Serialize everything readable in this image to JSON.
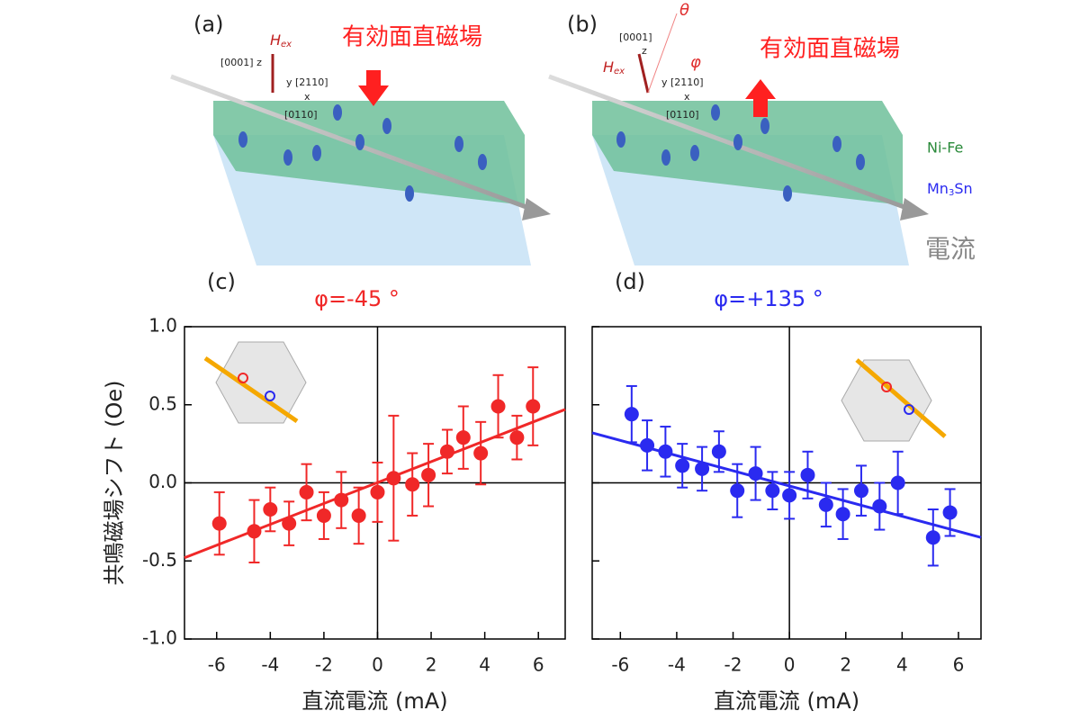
{
  "schematic": {
    "a": {
      "label": "(a)",
      "field": "有効面直磁場",
      "hex": [
        "H",
        "ex"
      ],
      "z": "[0001] z",
      "y": "y [2110]",
      "x": "x",
      "xdir": "[0110]"
    },
    "b": {
      "label": "(b)",
      "field": "有効面直磁場",
      "hex": [
        "H",
        "ex"
      ],
      "theta": "θ",
      "phi": "φ",
      "z0": "[0001]",
      "z": "z",
      "y": "y [2110]",
      "x": "x",
      "xdir": "[0110]",
      "nife": "Ni-Fe",
      "mn3sn": [
        "Mn",
        "3",
        "Sn"
      ],
      "current": "電流"
    }
  },
  "chart_data": [
    {
      "type": "scatter",
      "panel": "(c)",
      "title": "φ=-45 °",
      "xlabel": "直流電流 (mA)",
      "ylabel": "共鳴磁場シフト (Oe)",
      "color": "#f02828",
      "x": [
        -5.9,
        -4.6,
        -4.0,
        -3.3,
        -2.65,
        -2.0,
        -1.35,
        -0.7,
        0,
        0.6,
        1.3,
        1.9,
        2.6,
        3.2,
        3.85,
        4.5,
        5.2,
        5.8
      ],
      "values": [
        -0.26,
        -0.31,
        -0.17,
        -0.26,
        -0.06,
        -0.21,
        -0.11,
        -0.21,
        -0.06,
        0.03,
        -0.01,
        0.05,
        0.2,
        0.29,
        0.19,
        0.49,
        0.29,
        0.49
      ],
      "errors": [
        0.2,
        0.2,
        0.14,
        0.14,
        0.18,
        0.15,
        0.18,
        0.18,
        0.19,
        0.4,
        0.2,
        0.2,
        0.14,
        0.2,
        0.2,
        0.2,
        0.14,
        0.25
      ],
      "fit": {
        "x": [
          -7.2,
          7
        ],
        "y": [
          -0.48,
          0.47
        ]
      },
      "xlim": [
        -7.2,
        7
      ],
      "ylim": [
        -1,
        1
      ],
      "xticks": [
        -6,
        -4,
        -2,
        0,
        2,
        4,
        6
      ],
      "yticks": [
        {
          "value": 1,
          "label": "1.0"
        },
        0.5,
        {
          "value": 0,
          "label": "0.0"
        },
        -0.5,
        {
          "value": -1,
          "label": "-1.0"
        }
      ]
    },
    {
      "type": "scatter",
      "panel": "(d)",
      "title": "φ=+135 °",
      "xlabel": "直流電流 (mA)",
      "color": "#2a2af0",
      "x": [
        -5.6,
        -5.05,
        -4.4,
        -3.8,
        -3.1,
        -2.5,
        -1.85,
        -1.2,
        -0.6,
        0,
        0.65,
        1.3,
        1.9,
        2.55,
        3.2,
        3.85,
        5.1,
        5.7
      ],
      "values": [
        0.44,
        0.24,
        0.2,
        0.11,
        0.09,
        0.2,
        -0.05,
        0.06,
        -0.05,
        -0.08,
        0.05,
        -0.14,
        -0.2,
        -0.05,
        -0.15,
        0,
        -0.35,
        -0.19
      ],
      "errors": [
        0.18,
        0.16,
        0.16,
        0.14,
        0.14,
        0.13,
        0.17,
        0.17,
        0.12,
        0.15,
        0.15,
        0.14,
        0.16,
        0.16,
        0.15,
        0.2,
        0.18,
        0.15
      ],
      "fit": {
        "x": [
          -7,
          6.8
        ],
        "y": [
          0.32,
          -0.35
        ]
      },
      "xlim": [
        -7,
        6.8
      ],
      "ylim": [
        -1,
        1
      ],
      "xticks": [
        -6,
        -4,
        -2,
        0,
        2,
        4,
        6
      ],
      "yticks": [
        1,
        0.5,
        0,
        -0.5,
        -1
      ]
    }
  ]
}
